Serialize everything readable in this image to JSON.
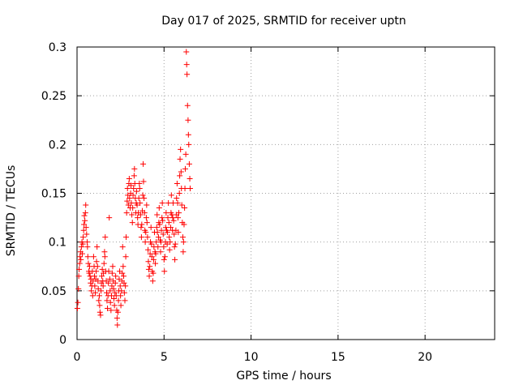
{
  "chart_data": {
    "type": "scatter",
    "title": "Day 017 of 2025, SRMTID for receiver uptn",
    "xlabel": "GPS time / hours",
    "ylabel": "SRMTID / TECUs",
    "xlim": [
      0,
      24
    ],
    "ylim": [
      0,
      0.3
    ],
    "x_ticks": [
      "0",
      "5",
      "10",
      "15",
      "20"
    ],
    "y_ticks": [
      "0",
      "0.05",
      "0.1",
      "0.15",
      "0.2",
      "0.25",
      "0.3"
    ],
    "grid": true,
    "marker": "+",
    "series": [
      {
        "color": "#ff0000",
        "points": [
          [
            0.02,
            0.032
          ],
          [
            0.05,
            0.038
          ],
          [
            0.08,
            0.052
          ],
          [
            0.1,
            0.065
          ],
          [
            0.12,
            0.072
          ],
          [
            0.15,
            0.078
          ],
          [
            0.17,
            0.085
          ],
          [
            0.2,
            0.09
          ],
          [
            0.22,
            0.082
          ],
          [
            0.25,
            0.095
          ],
          [
            0.28,
            0.1
          ],
          [
            0.3,
            0.088
          ],
          [
            0.33,
            0.098
          ],
          [
            0.35,
            0.105
          ],
          [
            0.38,
            0.112
          ],
          [
            0.4,
            0.118
          ],
          [
            0.42,
            0.127
          ],
          [
            0.45,
            0.122
          ],
          [
            0.48,
            0.13
          ],
          [
            0.5,
            0.138
          ],
          [
            0.52,
            0.115
          ],
          [
            0.55,
            0.108
          ],
          [
            0.58,
            0.1
          ],
          [
            0.6,
            0.095
          ],
          [
            0.62,
            0.085
          ],
          [
            0.65,
            0.078
          ],
          [
            0.68,
            0.07
          ],
          [
            0.7,
            0.068
          ],
          [
            0.72,
            0.075
          ],
          [
            0.75,
            0.065
          ],
          [
            0.78,
            0.058
          ],
          [
            0.8,
            0.062
          ],
          [
            0.82,
            0.05
          ],
          [
            0.85,
            0.055
          ],
          [
            0.88,
            0.07
          ],
          [
            0.9,
            0.045
          ],
          [
            0.92,
            0.06
          ],
          [
            0.95,
            0.085
          ],
          [
            0.98,
            0.075
          ],
          [
            1.0,
            0.065
          ],
          [
            1.02,
            0.055
          ],
          [
            1.05,
            0.048
          ],
          [
            1.08,
            0.062
          ],
          [
            1.1,
            0.07
          ],
          [
            1.12,
            0.08
          ],
          [
            1.15,
            0.095
          ],
          [
            1.18,
            0.075
          ],
          [
            1.2,
            0.06
          ],
          [
            1.22,
            0.052
          ],
          [
            1.25,
            0.04
          ],
          [
            1.28,
            0.045
          ],
          [
            1.3,
            0.035
          ],
          [
            1.32,
            0.028
          ],
          [
            1.35,
            0.025
          ],
          [
            1.38,
            0.05
          ],
          [
            1.4,
            0.058
          ],
          [
            1.42,
            0.065
          ],
          [
            1.45,
            0.072
          ],
          [
            1.48,
            0.06
          ],
          [
            1.5,
            0.055
          ],
          [
            1.52,
            0.068
          ],
          [
            1.55,
            0.078
          ],
          [
            1.58,
            0.09
          ],
          [
            1.6,
            0.085
          ],
          [
            1.62,
            0.105
          ],
          [
            1.65,
            0.07
          ],
          [
            1.68,
            0.06
          ],
          [
            1.7,
            0.048
          ],
          [
            1.72,
            0.04
          ],
          [
            1.75,
            0.032
          ],
          [
            1.78,
            0.045
          ],
          [
            1.8,
            0.058
          ],
          [
            1.82,
            0.07
          ],
          [
            1.85,
            0.125
          ],
          [
            1.88,
            0.062
          ],
          [
            1.9,
            0.05
          ],
          [
            1.92,
            0.038
          ],
          [
            1.95,
            0.03
          ],
          [
            1.98,
            0.045
          ],
          [
            2.0,
            0.055
          ],
          [
            2.02,
            0.068
          ],
          [
            2.05,
            0.075
          ],
          [
            2.08,
            0.06
          ],
          [
            2.1,
            0.052
          ],
          [
            2.12,
            0.042
          ],
          [
            2.15,
            0.035
          ],
          [
            2.18,
            0.048
          ],
          [
            2.2,
            0.058
          ],
          [
            2.22,
            0.065
          ],
          [
            2.25,
            0.045
          ],
          [
            2.28,
            0.03
          ],
          [
            2.3,
            0.022
          ],
          [
            2.32,
            0.015
          ],
          [
            2.35,
            0.028
          ],
          [
            2.38,
            0.04
          ],
          [
            2.4,
            0.05
          ],
          [
            2.42,
            0.062
          ],
          [
            2.45,
            0.07
          ],
          [
            2.48,
            0.055
          ],
          [
            2.5,
            0.045
          ],
          [
            2.52,
            0.035
          ],
          [
            2.55,
            0.05
          ],
          [
            2.58,
            0.06
          ],
          [
            2.6,
            0.068
          ],
          [
            2.62,
            0.095
          ],
          [
            2.65,
            0.075
          ],
          [
            2.68,
            0.065
          ],
          [
            2.7,
            0.058
          ],
          [
            2.72,
            0.048
          ],
          [
            2.75,
            0.04
          ],
          [
            2.78,
            0.055
          ],
          [
            2.8,
            0.085
          ],
          [
            2.82,
            0.105
          ],
          [
            2.85,
            0.13
          ],
          [
            2.88,
            0.142
          ],
          [
            2.9,
            0.155
          ],
          [
            2.92,
            0.148
          ],
          [
            2.95,
            0.138
          ],
          [
            2.98,
            0.16
          ],
          [
            3.0,
            0.165
          ],
          [
            3.02,
            0.145
          ],
          [
            3.05,
            0.135
          ],
          [
            3.08,
            0.15
          ],
          [
            3.1,
            0.158
          ],
          [
            3.12,
            0.14
          ],
          [
            3.15,
            0.128
          ],
          [
            3.18,
            0.12
          ],
          [
            3.2,
            0.135
          ],
          [
            3.22,
            0.148
          ],
          [
            3.25,
            0.155
          ],
          [
            3.28,
            0.168
          ],
          [
            3.3,
            0.175
          ],
          [
            3.32,
            0.16
          ],
          [
            3.35,
            0.145
          ],
          [
            3.38,
            0.13
          ],
          [
            3.4,
            0.14
          ],
          [
            3.42,
            0.152
          ],
          [
            3.45,
            0.138
          ],
          [
            3.48,
            0.125
          ],
          [
            3.5,
            0.118
          ],
          [
            3.52,
            0.13
          ],
          [
            3.55,
            0.145
          ],
          [
            3.58,
            0.16
          ],
          [
            3.6,
            0.155
          ],
          [
            3.62,
            0.14
          ],
          [
            3.65,
            0.128
          ],
          [
            3.68,
            0.115
          ],
          [
            3.7,
            0.105
          ],
          [
            3.72,
            0.118
          ],
          [
            3.75,
            0.132
          ],
          [
            3.78,
            0.148
          ],
          [
            3.8,
            0.18
          ],
          [
            3.82,
            0.162
          ],
          [
            3.85,
            0.145
          ],
          [
            3.88,
            0.13
          ],
          [
            3.9,
            0.112
          ],
          [
            3.92,
            0.1
          ],
          [
            3.95,
            0.11
          ],
          [
            3.98,
            0.125
          ],
          [
            4.0,
            0.138
          ],
          [
            4.02,
            0.12
          ],
          [
            4.05,
            0.105
          ],
          [
            4.08,
            0.092
          ],
          [
            4.1,
            0.08
          ],
          [
            4.12,
            0.072
          ],
          [
            4.15,
            0.065
          ],
          [
            4.18,
            0.075
          ],
          [
            4.2,
            0.088
          ],
          [
            4.22,
            0.1
          ],
          [
            4.25,
            0.115
          ],
          [
            4.28,
            0.098
          ],
          [
            4.3,
            0.085
          ],
          [
            4.32,
            0.07
          ],
          [
            4.35,
            0.06
          ],
          [
            4.38,
            0.068
          ],
          [
            4.4,
            0.082
          ],
          [
            4.42,
            0.095
          ],
          [
            4.45,
            0.11
          ],
          [
            4.48,
            0.09
          ],
          [
            4.5,
            0.078
          ],
          [
            4.52,
            0.088
          ],
          [
            4.55,
            0.1
          ],
          [
            4.58,
            0.115
          ],
          [
            4.6,
            0.128
          ],
          [
            4.62,
            0.11
          ],
          [
            4.65,
            0.095
          ],
          [
            4.68,
            0.105
          ],
          [
            4.7,
            0.12
          ],
          [
            4.72,
            0.135
          ],
          [
            4.75,
            0.118
          ],
          [
            4.78,
            0.102
          ],
          [
            4.8,
            0.09
          ],
          [
            4.82,
            0.1
          ],
          [
            4.85,
            0.112
          ],
          [
            4.88,
            0.125
          ],
          [
            4.9,
            0.14
          ],
          [
            4.92,
            0.122
          ],
          [
            4.95,
            0.108
          ],
          [
            4.98,
            0.095
          ],
          [
            5.0,
            0.082
          ],
          [
            5.02,
            0.07
          ],
          [
            5.05,
            0.085
          ],
          [
            5.08,
            0.1
          ],
          [
            5.1,
            0.115
          ],
          [
            5.12,
            0.13
          ],
          [
            5.15,
            0.112
          ],
          [
            5.18,
            0.098
          ],
          [
            5.2,
            0.11
          ],
          [
            5.22,
            0.125
          ],
          [
            5.25,
            0.14
          ],
          [
            5.28,
            0.12
          ],
          [
            5.3,
            0.105
          ],
          [
            5.32,
            0.092
          ],
          [
            5.35,
            0.1
          ],
          [
            5.38,
            0.115
          ],
          [
            5.4,
            0.13
          ],
          [
            5.42,
            0.148
          ],
          [
            5.45,
            0.128
          ],
          [
            5.48,
            0.112
          ],
          [
            5.5,
            0.125
          ],
          [
            5.52,
            0.14
          ],
          [
            5.55,
            0.122
          ],
          [
            5.58,
            0.108
          ],
          [
            5.6,
            0.095
          ],
          [
            5.62,
            0.082
          ],
          [
            5.65,
            0.098
          ],
          [
            5.68,
            0.112
          ],
          [
            5.7,
            0.128
          ],
          [
            5.72,
            0.145
          ],
          [
            5.75,
            0.16
          ],
          [
            5.78,
            0.14
          ],
          [
            5.8,
            0.125
          ],
          [
            5.82,
            0.11
          ],
          [
            5.85,
            0.13
          ],
          [
            5.88,
            0.15
          ],
          [
            5.9,
            0.168
          ],
          [
            5.92,
            0.185
          ],
          [
            5.95,
            0.195
          ],
          [
            5.98,
            0.172
          ],
          [
            6.0,
            0.155
          ],
          [
            6.02,
            0.138
          ],
          [
            6.05,
            0.12
          ],
          [
            6.08,
            0.105
          ],
          [
            6.1,
            0.09
          ],
          [
            6.12,
            0.1
          ],
          [
            6.15,
            0.118
          ],
          [
            6.18,
            0.135
          ],
          [
            6.2,
            0.155
          ],
          [
            6.22,
            0.175
          ],
          [
            6.25,
            0.19
          ],
          [
            6.28,
            0.295
          ],
          [
            6.3,
            0.282
          ],
          [
            6.32,
            0.272
          ],
          [
            6.35,
            0.24
          ],
          [
            6.38,
            0.225
          ],
          [
            6.4,
            0.21
          ],
          [
            6.42,
            0.2
          ],
          [
            6.45,
            0.18
          ],
          [
            6.48,
            0.165
          ],
          [
            6.5,
            0.155
          ]
        ]
      }
    ]
  }
}
